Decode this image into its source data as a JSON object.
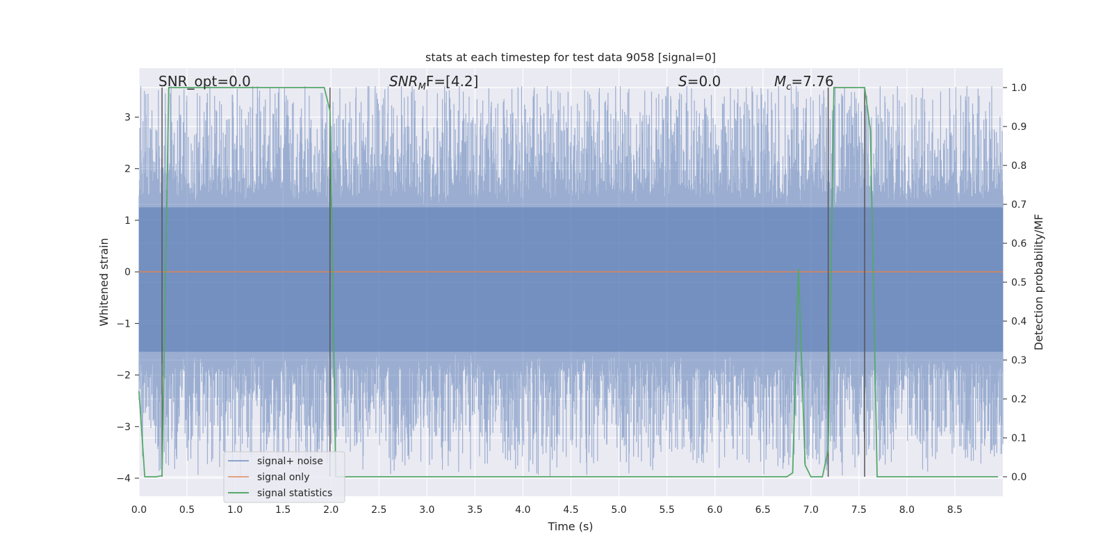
{
  "chart_data": {
    "type": "line",
    "title": "stats at each timestep for test data 9058 [signal=0]",
    "xlabel": "Time (s)",
    "ylabel": "Whitened strain",
    "ylabel_right": "Detection probability/MF",
    "xlim": [
      0.0,
      9.0
    ],
    "ylim": [
      -4.35,
      3.95
    ],
    "ylim_right": [
      -0.05,
      1.05
    ],
    "x_ticks": [
      "0.0",
      "0.5",
      "1.0",
      "1.5",
      "2.0",
      "2.5",
      "3.0",
      "3.5",
      "4.0",
      "4.5",
      "5.0",
      "5.5",
      "6.0",
      "6.5",
      "7.0",
      "7.5",
      "8.0",
      "8.5"
    ],
    "y_ticks": [
      "3",
      "2",
      "1",
      "0",
      "−1",
      "−2",
      "−3",
      "−4"
    ],
    "y_ticks_right": [
      "1.0",
      "0.9",
      "0.8",
      "0.7",
      "0.6",
      "0.5",
      "0.4",
      "0.3",
      "0.2",
      "0.1",
      "0.0"
    ],
    "grid": true,
    "legend_position": "lower-left",
    "colors": {
      "background": "#eaeaf2",
      "grid": "#ffffff",
      "noise": "#4c72b0",
      "signal": "#dd8452",
      "stats": "#55a868",
      "vline": "#555555"
    },
    "annotations": {
      "snr_opt": "SNR_opt=0.0",
      "snr_mf_main": "SNR",
      "snr_mf_sub": "M",
      "snr_mf_tail": "F=[4.2]",
      "s_main": "S",
      "s_tail": "=0.0",
      "mc_main": "M",
      "mc_sub": "c",
      "mc_tail": "=7.76"
    },
    "series": [
      {
        "name": "signal+ noise",
        "description": "whitened noise, amplitude approx within -4 to 3.6",
        "style": "filled-band",
        "approx_envelope": [
          -4.0,
          3.6
        ]
      },
      {
        "name": "signal only",
        "x": [
          0.0,
          9.0
        ],
        "y": [
          0.0,
          0.0
        ]
      },
      {
        "name": "signal statistics",
        "axis": "right",
        "x": [
          0.0,
          0.06,
          0.12,
          0.18,
          0.24,
          0.31,
          0.5,
          1.0,
          1.5,
          1.93,
          1.99,
          2.05,
          2.5,
          3.0,
          4.0,
          5.0,
          6.0,
          6.5,
          6.75,
          6.81,
          6.87,
          6.94,
          7.0,
          7.12,
          7.18,
          7.24,
          7.3,
          7.5,
          7.56,
          7.62,
          7.69,
          8.0,
          8.5,
          8.95
        ],
        "y": [
          0.22,
          0.0,
          0.0,
          0.0,
          0.003,
          1.0,
          1.0,
          1.0,
          1.0,
          1.0,
          0.94,
          0.0,
          0.0,
          0.0,
          0.0,
          0.0,
          0.0,
          0.0,
          0.0,
          0.01,
          0.535,
          0.03,
          0.0,
          0.0,
          0.07,
          1.0,
          1.0,
          1.0,
          1.0,
          0.89,
          0.0,
          0.0,
          0.0,
          0.0
        ]
      }
    ],
    "vertical_lines_x": [
      0.24,
      1.99,
      7.18,
      7.56
    ]
  }
}
